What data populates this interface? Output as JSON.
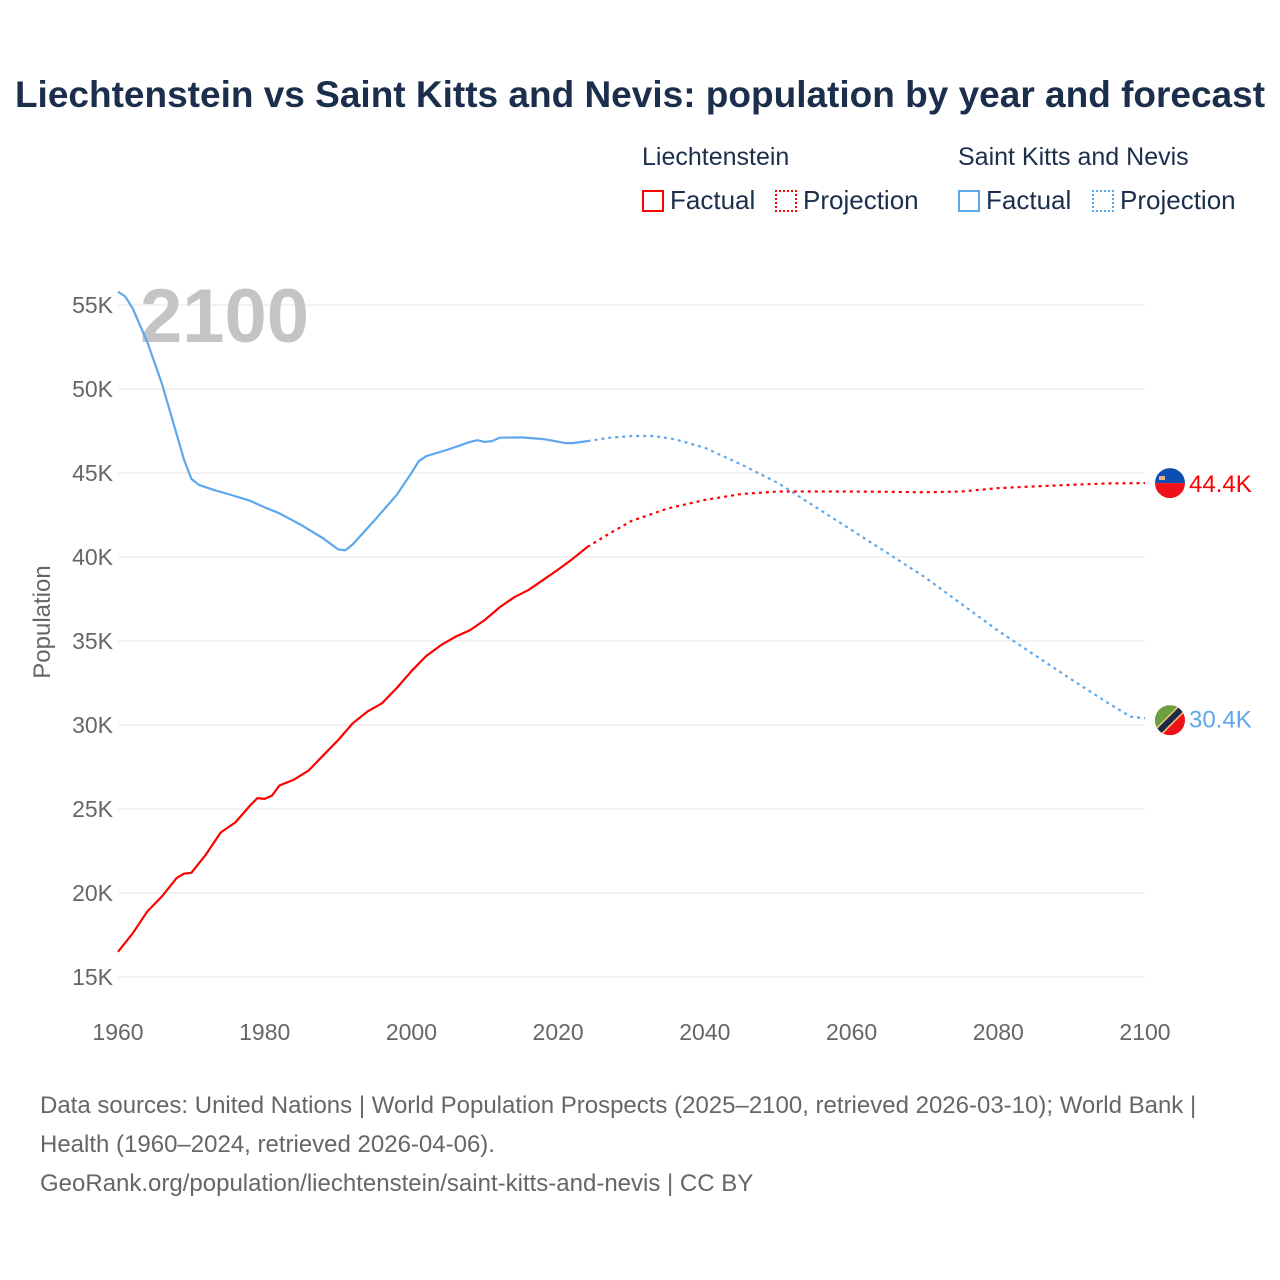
{
  "title": "Liechtenstein vs Saint Kitts and Nevis: population by year and forecast",
  "legend": {
    "groups": [
      {
        "name": "Liechtenstein",
        "factual": "Factual",
        "projection": "Projection",
        "color": "#ff0000"
      },
      {
        "name": "Saint Kitts and Nevis",
        "factual": "Factual",
        "projection": "Projection",
        "color": "#5fa7ec"
      }
    ]
  },
  "year_overlay": "2100",
  "footer": {
    "line1": "Data sources: United Nations | World Population Prospects (2025–2100, retrieved 2026-03-10); World Bank | Health (1960–2024, retrieved 2026-04-06).",
    "line2": "GeoRank.org/population/liechtenstein/saint-kitts-and-nevis | CC BY"
  },
  "chart_data": {
    "type": "line",
    "title": "Liechtenstein vs Saint Kitts and Nevis: population by year and forecast",
    "xlabel": "",
    "ylabel": "Population",
    "xlim": [
      1960,
      2100
    ],
    "ylim": [
      15000,
      55000
    ],
    "x_ticks": [
      1960,
      1980,
      2000,
      2020,
      2040,
      2060,
      2080,
      2100
    ],
    "x_tick_labels": [
      "1960",
      "1980",
      "2000",
      "2020",
      "2040",
      "2060",
      "2080",
      "2100"
    ],
    "y_ticks": [
      15000,
      20000,
      25000,
      30000,
      35000,
      40000,
      45000,
      50000,
      55000
    ],
    "y_tick_labels": [
      "15K",
      "20K",
      "25K",
      "30K",
      "35K",
      "40K",
      "45K",
      "50K",
      "55K"
    ],
    "grid": true,
    "legend_position": "top-right",
    "series": [
      {
        "name": "Liechtenstein",
        "color": "#ff0000",
        "end_label": "44.4K",
        "factual": [
          [
            1960,
            16500
          ],
          [
            1962,
            17600
          ],
          [
            1964,
            18900
          ],
          [
            1966,
            19800
          ],
          [
            1968,
            20900
          ],
          [
            1969,
            21150
          ],
          [
            1970,
            21200
          ],
          [
            1972,
            22300
          ],
          [
            1974,
            23600
          ],
          [
            1976,
            24200
          ],
          [
            1978,
            25200
          ],
          [
            1979,
            25650
          ],
          [
            1980,
            25600
          ],
          [
            1981,
            25800
          ],
          [
            1982,
            26400
          ],
          [
            1984,
            26750
          ],
          [
            1986,
            27300
          ],
          [
            1988,
            28200
          ],
          [
            1990,
            29100
          ],
          [
            1992,
            30100
          ],
          [
            1994,
            30800
          ],
          [
            1996,
            31300
          ],
          [
            1998,
            32200
          ],
          [
            2000,
            33200
          ],
          [
            2002,
            34100
          ],
          [
            2004,
            34750
          ],
          [
            2006,
            35250
          ],
          [
            2008,
            35650
          ],
          [
            2010,
            36250
          ],
          [
            2012,
            37000
          ],
          [
            2014,
            37600
          ],
          [
            2016,
            38050
          ],
          [
            2018,
            38650
          ],
          [
            2020,
            39250
          ],
          [
            2022,
            39900
          ],
          [
            2024,
            40600
          ]
        ],
        "projection": [
          [
            2024,
            40600
          ],
          [
            2027,
            41400
          ],
          [
            2030,
            42150
          ],
          [
            2035,
            42900
          ],
          [
            2040,
            43400
          ],
          [
            2045,
            43750
          ],
          [
            2050,
            43900
          ],
          [
            2055,
            43900
          ],
          [
            2060,
            43900
          ],
          [
            2065,
            43880
          ],
          [
            2070,
            43850
          ],
          [
            2075,
            43900
          ],
          [
            2080,
            44100
          ],
          [
            2085,
            44200
          ],
          [
            2090,
            44300
          ],
          [
            2095,
            44380
          ],
          [
            2100,
            44400
          ]
        ]
      },
      {
        "name": "Saint Kitts and Nevis",
        "color": "#5fa7ec",
        "end_label": "30.4K",
        "factual": [
          [
            1960,
            55800
          ],
          [
            1961,
            55500
          ],
          [
            1962,
            54800
          ],
          [
            1964,
            52800
          ],
          [
            1966,
            50300
          ],
          [
            1968,
            47300
          ],
          [
            1969,
            45800
          ],
          [
            1970,
            44650
          ],
          [
            1971,
            44300
          ],
          [
            1973,
            44000
          ],
          [
            1975,
            43750
          ],
          [
            1978,
            43350
          ],
          [
            1980,
            42950
          ],
          [
            1982,
            42600
          ],
          [
            1985,
            41900
          ],
          [
            1988,
            41100
          ],
          [
            1990,
            40450
          ],
          [
            1991,
            40400
          ],
          [
            1992,
            40750
          ],
          [
            1995,
            42200
          ],
          [
            1998,
            43700
          ],
          [
            2000,
            45000
          ],
          [
            2001,
            45700
          ],
          [
            2002,
            46000
          ],
          [
            2005,
            46400
          ],
          [
            2008,
            46850
          ],
          [
            2009,
            46950
          ],
          [
            2010,
            46850
          ],
          [
            2011,
            46900
          ],
          [
            2012,
            47100
          ],
          [
            2015,
            47120
          ],
          [
            2018,
            47020
          ],
          [
            2021,
            46780
          ],
          [
            2022,
            46780
          ],
          [
            2024,
            46900
          ]
        ],
        "projection": [
          [
            2024,
            46900
          ],
          [
            2027,
            47100
          ],
          [
            2030,
            47200
          ],
          [
            2033,
            47200
          ],
          [
            2036,
            47000
          ],
          [
            2040,
            46500
          ],
          [
            2045,
            45500
          ],
          [
            2050,
            44400
          ],
          [
            2055,
            43000
          ],
          [
            2060,
            41600
          ],
          [
            2065,
            40200
          ],
          [
            2070,
            38800
          ],
          [
            2075,
            37200
          ],
          [
            2080,
            35600
          ],
          [
            2085,
            34150
          ],
          [
            2090,
            32700
          ],
          [
            2095,
            31300
          ],
          [
            2098,
            30500
          ],
          [
            2100,
            30400
          ]
        ]
      }
    ]
  }
}
